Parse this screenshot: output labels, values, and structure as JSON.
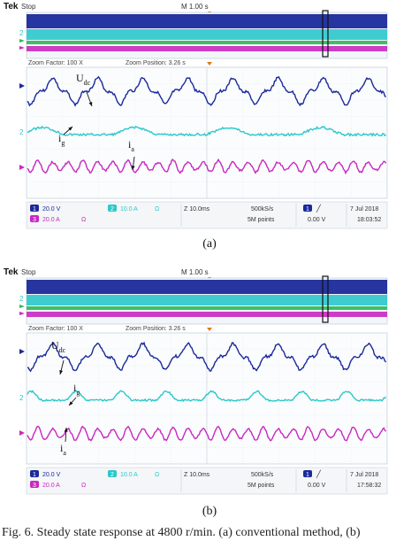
{
  "colors": {
    "ch1": "#1a2a9a",
    "ch2": "#2ac8cc",
    "ch3": "#c828c0",
    "ch4": "#2ab85a",
    "trigger": "#e07a10"
  },
  "panels": [
    {
      "id": "a",
      "header": {
        "brand": "Tek",
        "mode": "Stop",
        "timebase": "M 1.00 s"
      },
      "zoom": {
        "factor": "Zoom Factor: 100 X",
        "position": "Zoom Position: 3.26 s"
      },
      "labels": {
        "udc": "U",
        "udc_sub": "dc",
        "ig": "i",
        "ig_sub": "g",
        "ia": "i",
        "ia_sub": "a"
      },
      "status": {
        "ch1": "20.0 V",
        "ch2": "10.0 A",
        "ch2_extra": "Ω",
        "ch3": "20.0 A",
        "ch3_extra": "Ω",
        "zoom_time": "Z 10.0ms",
        "sample_rate": "500kS/s",
        "points": "5M points",
        "trig_ch": "1",
        "trig_level": "0.00 V",
        "date": "7 Jul  2018",
        "time": "18:03:52"
      },
      "caption": "(a)"
    },
    {
      "id": "b",
      "header": {
        "brand": "Tek",
        "mode": "Stop",
        "timebase": "M 1.00 s"
      },
      "zoom": {
        "factor": "Zoom Factor: 100 X",
        "position": "Zoom Position: 3.26 s"
      },
      "labels": {
        "udc": "U",
        "udc_sub": "dc",
        "ig": "i",
        "ig_sub": "g",
        "ia": "i",
        "ia_sub": "a"
      },
      "status": {
        "ch1": "20.0 V",
        "ch2": "10.0 A",
        "ch2_extra": "Ω",
        "ch3": "20.0 A",
        "ch3_extra": "Ω",
        "zoom_time": "Z 10.0ms",
        "sample_rate": "500kS/s",
        "points": "5M points",
        "trig_ch": "1",
        "trig_level": "0.00 V",
        "date": "7 Jul  2018",
        "time": "17:58:32"
      },
      "caption": "(b)"
    }
  ],
  "figure_caption": "Fig. 6.   Steady state response at 4800 r/min. (a) conventional method, (b)"
}
